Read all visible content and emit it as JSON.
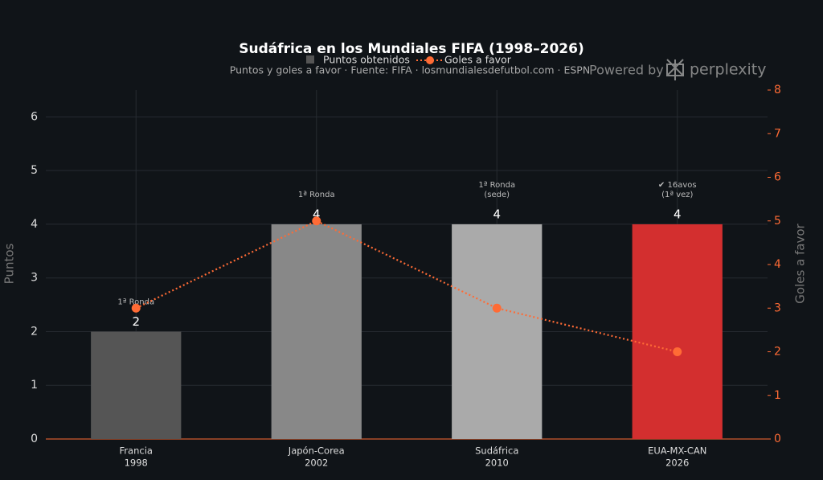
{
  "chart_data": {
    "type": "bar",
    "title": "Sudáfrica en los Mundiales FIFA (1998–2026)",
    "subtitle": "Puntos y goles a favor · Fuente: FIFA · losmundialesdefutbol.com · ESPN",
    "watermark": {
      "prefix": "Powered by",
      "brand": "perplexity"
    },
    "categories": [
      [
        "Francia",
        "1998"
      ],
      [
        "Japón-Corea",
        "2002"
      ],
      [
        "Sudáfrica",
        "2010"
      ],
      [
        "EUA-MX-CAN",
        "2026"
      ]
    ],
    "y_label": "Puntos",
    "y2_label": "Goles a favor",
    "ylim": [
      0,
      6.5
    ],
    "yticks": [
      0,
      1,
      2,
      3,
      4,
      5,
      6
    ],
    "y2lim": [
      0,
      8
    ],
    "y2ticks": [
      0,
      1,
      2,
      3,
      4,
      5,
      6,
      7,
      8
    ],
    "grid": true,
    "series": [
      {
        "name": "Puntos obtenidos",
        "type": "bar",
        "color": "#555555",
        "colors": [
          "#555555",
          "#888888",
          "#aaaaaa",
          "#d32f2f"
        ],
        "values": [
          2,
          4,
          4,
          4
        ]
      },
      {
        "name": "Goles a favor",
        "type": "line",
        "axis": "y2",
        "color": "#ff6b35",
        "values": [
          3,
          5,
          3,
          2
        ]
      }
    ],
    "annotations": [
      [
        "1ª Ronda"
      ],
      [
        "1ª Ronda"
      ],
      [
        "1ª Ronda",
        "(sede)"
      ],
      [
        "✔ 16avos",
        "(1ª vez)"
      ]
    ]
  }
}
